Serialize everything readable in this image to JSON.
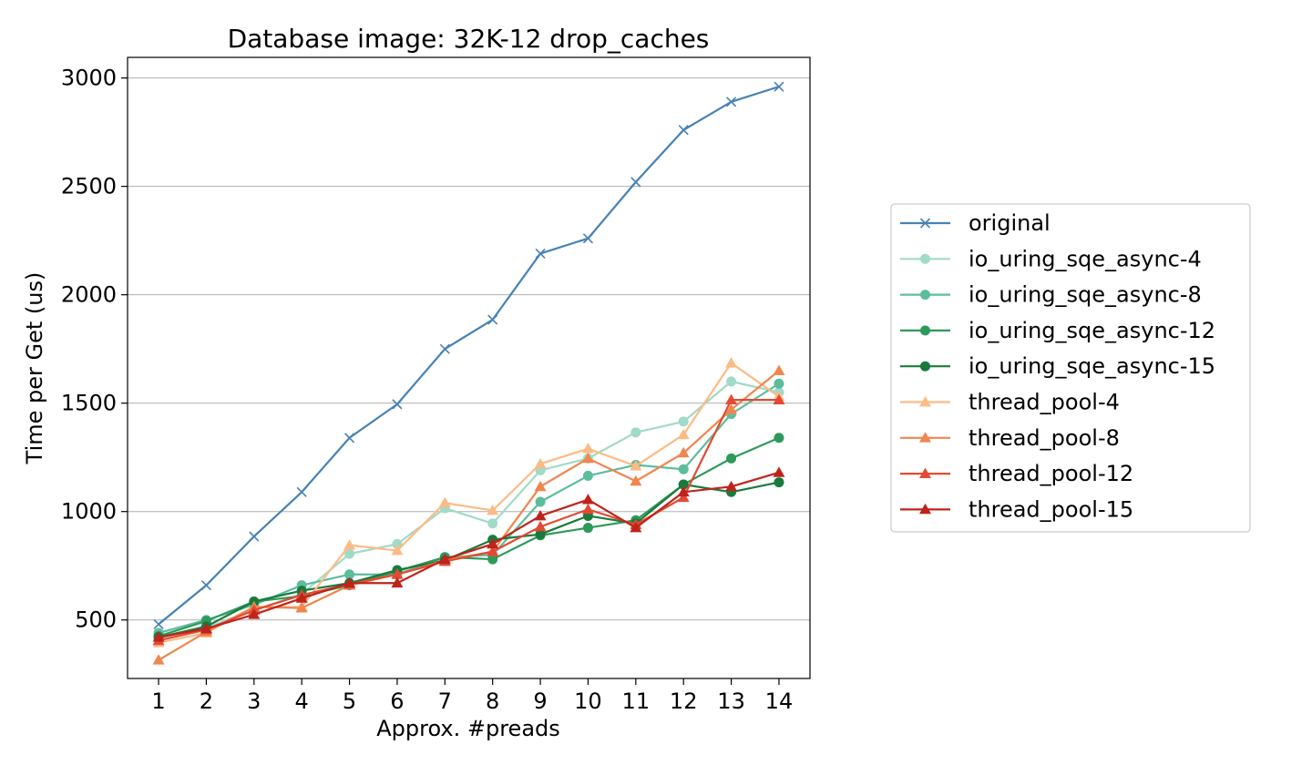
{
  "chart_data": {
    "type": "line",
    "title": "Database image: 32K-12 drop_caches",
    "xlabel": "Approx. #preads",
    "ylabel": "Time per Get (us)",
    "x": [
      1,
      2,
      3,
      4,
      5,
      6,
      7,
      8,
      9,
      10,
      11,
      12,
      13,
      14
    ],
    "xlim": [
      0.35,
      14.65
    ],
    "ylim": [
      230,
      3095
    ],
    "yticks": [
      500,
      1000,
      1500,
      2000,
      2500,
      3000
    ],
    "grid": "y",
    "legend_position": "right",
    "series": [
      {
        "name": "original",
        "color": "#4682b4",
        "marker": "x",
        "values": [
          480,
          660,
          885,
          1090,
          1340,
          1495,
          1750,
          1885,
          2190,
          2260,
          2520,
          2760,
          2890,
          2960
        ]
      },
      {
        "name": "io_uring_sqe_async-4",
        "color": "#a1dac8",
        "marker": "circle",
        "values": [
          415,
          465,
          545,
          620,
          805,
          850,
          1015,
          945,
          1190,
          1245,
          1365,
          1415,
          1600,
          1550
        ]
      },
      {
        "name": "io_uring_sqe_async-8",
        "color": "#5cbd9c",
        "marker": "circle",
        "values": [
          440,
          500,
          570,
          660,
          710,
          710,
          790,
          800,
          1045,
          1165,
          1215,
          1195,
          1450,
          1590
        ]
      },
      {
        "name": "io_uring_sqe_async-12",
        "color": "#2e9a5a",
        "marker": "circle",
        "values": [
          425,
          495,
          585,
          610,
          660,
          725,
          790,
          780,
          890,
          925,
          960,
          1125,
          1245,
          1340
        ]
      },
      {
        "name": "io_uring_sqe_async-15",
        "color": "#1a7a3c",
        "marker": "circle",
        "values": [
          420,
          470,
          585,
          635,
          670,
          730,
          775,
          870,
          895,
          980,
          945,
          1125,
          1090,
          1135
        ]
      },
      {
        "name": "thread_pool-4",
        "color": "#fdbb84",
        "marker": "triangle",
        "values": [
          395,
          440,
          560,
          560,
          845,
          820,
          1040,
          1005,
          1220,
          1290,
          1210,
          1355,
          1685,
          1530
        ]
      },
      {
        "name": "thread_pool-8",
        "color": "#f0854e",
        "marker": "triangle",
        "values": [
          315,
          445,
          560,
          555,
          660,
          710,
          775,
          815,
          1115,
          1245,
          1140,
          1270,
          1470,
          1650
        ]
      },
      {
        "name": "thread_pool-12",
        "color": "#e34a33",
        "marker": "triangle",
        "values": [
          405,
          455,
          545,
          615,
          665,
          710,
          770,
          815,
          930,
          1010,
          940,
          1065,
          1515,
          1515
        ]
      },
      {
        "name": "thread_pool-15",
        "color": "#c0231b",
        "marker": "triangle",
        "values": [
          420,
          460,
          525,
          600,
          670,
          670,
          780,
          850,
          980,
          1055,
          925,
          1090,
          1115,
          1180
        ]
      }
    ]
  }
}
